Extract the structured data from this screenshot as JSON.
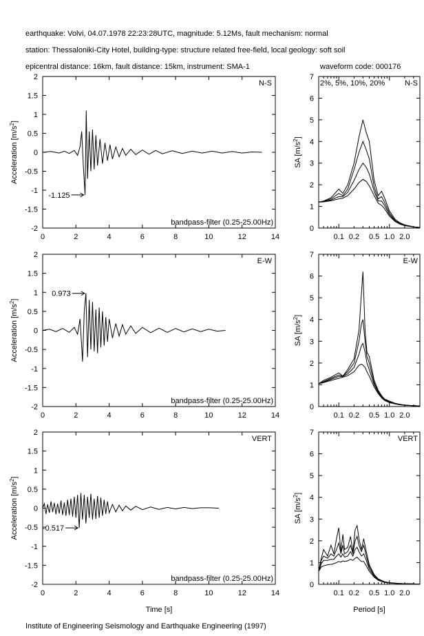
{
  "header": {
    "line1": "earthquake: Volvi, 04.07.1978 22:23:28UTC, magnitude: 5.12Ms, fault mechanism: normal",
    "line2": "station: Thessaloniki-City Hotel, building-type: structure related free-field, local geology: soft soil",
    "line3": "epicentral distance: 16km, fault distance: 15km, instrument: SMA-1",
    "waveform_code": "waveform code: 000176"
  },
  "footer": "Institute of Engineering Seismology and Earthquake Engineering (1997)",
  "chart_data": [
    {
      "type": "line",
      "component": "N-S",
      "ylabel": "Acceleration [m/s²]",
      "xlabel": "",
      "xlim": [
        0,
        14
      ],
      "ylim": [
        -2,
        2
      ],
      "xticks": [
        0,
        2,
        4,
        6,
        8,
        10,
        12,
        14
      ],
      "yticks": [
        -2,
        -1.5,
        -1,
        -0.5,
        0,
        0.5,
        1,
        1.5,
        2
      ],
      "filter_label": "bandpass-filter (0.25-25.00Hz)",
      "peak": {
        "label": "-1.125",
        "t": 2.55,
        "value": -1.125
      },
      "series": [
        {
          "x": [
            0,
            0.5,
            1,
            1.3,
            1.6,
            1.9,
            2.1,
            2.25,
            2.35,
            2.45,
            2.55,
            2.62,
            2.7,
            2.8,
            2.9,
            3.0,
            3.1,
            3.2,
            3.3,
            3.45,
            3.6,
            3.75,
            3.9,
            4.05,
            4.2,
            4.4,
            4.6,
            4.8,
            5.0,
            5.3,
            5.6,
            6.0,
            6.4,
            6.8,
            7.2,
            7.8,
            8.4,
            9.0,
            9.6,
            10.2,
            10.8,
            11.4,
            12.0,
            12.6,
            13.2
          ],
          "y": [
            0,
            0.02,
            -0.02,
            0.03,
            -0.03,
            0.05,
            -0.08,
            0.15,
            0.55,
            -0.4,
            -1.125,
            1.1,
            -0.7,
            0.55,
            -0.5,
            0.6,
            -0.45,
            0.45,
            -0.35,
            0.35,
            -0.3,
            0.25,
            -0.22,
            0.2,
            -0.18,
            0.14,
            -0.12,
            0.1,
            -0.08,
            0.08,
            -0.06,
            0.06,
            -0.05,
            0.05,
            -0.04,
            0.04,
            -0.03,
            0.03,
            -0.02,
            0.03,
            -0.02,
            0.02,
            -0.02,
            0.01,
            0
          ]
        }
      ]
    },
    {
      "type": "line",
      "component": "E-W",
      "ylabel": "Acceleration [m/s²]",
      "xlabel": "",
      "xlim": [
        0,
        14
      ],
      "ylim": [
        -2,
        2
      ],
      "xticks": [
        0,
        2,
        4,
        6,
        8,
        10,
        12,
        14
      ],
      "yticks": [
        -2,
        -1.5,
        -1,
        -0.5,
        0,
        0.5,
        1,
        1.5,
        2
      ],
      "filter_label": "bandpass-filter (0.25-25.00Hz)",
      "peak": {
        "label": "0.973",
        "t": 2.6,
        "value": 0.973
      },
      "series": [
        {
          "x": [
            0,
            0.4,
            0.8,
            1.2,
            1.6,
            1.9,
            2.1,
            2.25,
            2.4,
            2.5,
            2.6,
            2.7,
            2.8,
            2.9,
            3.0,
            3.1,
            3.2,
            3.3,
            3.4,
            3.5,
            3.6,
            3.7,
            3.8,
            3.9,
            4.0,
            4.2,
            4.4,
            4.6,
            4.8,
            5.0,
            5.3,
            5.6,
            6.0,
            6.5,
            7.0,
            7.5,
            8.0,
            8.5,
            9.0,
            9.5,
            10.0,
            10.5,
            11.0
          ],
          "y": [
            0,
            0.03,
            -0.03,
            0.05,
            -0.05,
            0.08,
            -0.1,
            0.3,
            -0.82,
            0.5,
            0.973,
            -0.7,
            0.8,
            -0.5,
            0.75,
            -0.55,
            0.55,
            -0.6,
            0.6,
            -0.45,
            0.5,
            -0.4,
            0.35,
            -0.3,
            0.3,
            -0.2,
            0.18,
            -0.15,
            0.15,
            -0.1,
            0.12,
            -0.08,
            0.08,
            -0.06,
            0.06,
            -0.05,
            0.05,
            -0.04,
            0.04,
            -0.03,
            0.03,
            -0.02,
            0
          ]
        }
      ]
    },
    {
      "type": "line",
      "component": "VERT",
      "ylabel": "Acceleration [m/s²]",
      "xlabel": "Time [s]",
      "xlim": [
        0,
        14
      ],
      "ylim": [
        -2,
        2
      ],
      "xticks": [
        0,
        2,
        4,
        6,
        8,
        10,
        12,
        14
      ],
      "yticks": [
        -2,
        -1.5,
        -1,
        -0.5,
        0,
        0.5,
        1,
        1.5,
        2
      ],
      "filter_label": "bandpass-filter (0.25-25.00Hz)",
      "peak": {
        "label": "-0.517",
        "t": 2.2,
        "value": -0.517
      },
      "series": [
        {
          "x": [
            0,
            0.1,
            0.2,
            0.3,
            0.4,
            0.5,
            0.6,
            0.7,
            0.8,
            0.9,
            1.0,
            1.1,
            1.2,
            1.3,
            1.4,
            1.5,
            1.6,
            1.7,
            1.8,
            1.9,
            2.0,
            2.1,
            2.2,
            2.3,
            2.4,
            2.5,
            2.6,
            2.7,
            2.8,
            2.9,
            3.0,
            3.1,
            3.2,
            3.3,
            3.4,
            3.5,
            3.6,
            3.7,
            3.8,
            3.9,
            4.0,
            4.2,
            4.4,
            4.6,
            4.8,
            5.0,
            5.3,
            5.6,
            6.0,
            6.5,
            7.0,
            7.5,
            8.0,
            8.5,
            9.0,
            9.5,
            10.0,
            10.6
          ],
          "y": [
            0,
            0.12,
            -0.15,
            0.1,
            -0.12,
            0.18,
            -0.1,
            0.14,
            -0.16,
            0.12,
            -0.14,
            0.2,
            -0.18,
            0.15,
            -0.2,
            0.22,
            -0.18,
            0.25,
            -0.22,
            0.3,
            -0.25,
            0.35,
            -0.517,
            0.4,
            -0.3,
            0.35,
            -0.4,
            0.3,
            -0.25,
            0.38,
            -0.3,
            0.25,
            -0.28,
            0.32,
            -0.25,
            0.28,
            -0.2,
            0.22,
            -0.15,
            0.18,
            -0.12,
            0.1,
            -0.1,
            0.08,
            -0.07,
            0.06,
            -0.05,
            0.05,
            -0.04,
            0.03,
            -0.03,
            0.02,
            -0.02,
            0.02,
            -0.01,
            0.01,
            0.01,
            0
          ]
        }
      ]
    },
    {
      "type": "line",
      "component": "N-S",
      "ylabel": "SA [m/s²]",
      "xlabel": "",
      "xscale": "log",
      "xlim": [
        0.04,
        4
      ],
      "ylim": [
        0,
        7
      ],
      "xtick_labels": [
        {
          "v": 0.1,
          "t": "0.1"
        },
        {
          "v": 0.2,
          "t": "0.2"
        },
        {
          "v": 0.5,
          "t": "0.5"
        },
        {
          "v": 1.0,
          "t": "1.0"
        },
        {
          "v": 2.0,
          "t": "2.0"
        }
      ],
      "yticks": [
        0,
        1,
        2,
        3,
        4,
        5,
        6,
        7
      ],
      "damping_label": "2%, 5%, 10%, 20%",
      "x": [
        0.04,
        0.05,
        0.07,
        0.1,
        0.12,
        0.15,
        0.2,
        0.25,
        0.3,
        0.35,
        0.4,
        0.5,
        0.6,
        0.7,
        0.8,
        1.0,
        1.3,
        1.6,
        2.0,
        3.0,
        4.0
      ],
      "series": [
        {
          "name": "2%",
          "values": [
            1.2,
            1.25,
            1.4,
            1.8,
            1.6,
            2.0,
            3.0,
            4.2,
            5.0,
            4.4,
            4.0,
            2.2,
            1.5,
            1.7,
            1.4,
            0.8,
            0.4,
            0.25,
            0.15,
            0.06,
            0.03
          ]
        },
        {
          "name": "5%",
          "values": [
            1.2,
            1.24,
            1.35,
            1.6,
            1.5,
            1.8,
            2.7,
            3.5,
            4.0,
            3.6,
            3.2,
            1.9,
            1.35,
            1.45,
            1.2,
            0.7,
            0.35,
            0.22,
            0.13,
            0.05,
            0.03
          ]
        },
        {
          "name": "10%",
          "values": [
            1.2,
            1.22,
            1.3,
            1.45,
            1.45,
            1.65,
            2.2,
            2.7,
            3.0,
            2.8,
            2.5,
            1.7,
            1.25,
            1.25,
            1.05,
            0.62,
            0.32,
            0.2,
            0.12,
            0.05,
            0.03
          ]
        },
        {
          "name": "20%",
          "values": [
            1.2,
            1.21,
            1.26,
            1.35,
            1.38,
            1.5,
            1.8,
            2.1,
            2.25,
            2.15,
            1.95,
            1.5,
            1.15,
            1.05,
            0.9,
            0.55,
            0.3,
            0.18,
            0.11,
            0.05,
            0.03
          ]
        }
      ]
    },
    {
      "type": "line",
      "component": "E-W",
      "ylabel": "SA [m/s²]",
      "xlabel": "",
      "xscale": "log",
      "xlim": [
        0.04,
        4
      ],
      "ylim": [
        0,
        7
      ],
      "xtick_labels": [
        {
          "v": 0.1,
          "t": "0.1"
        },
        {
          "v": 0.2,
          "t": "0.2"
        },
        {
          "v": 0.5,
          "t": "0.5"
        },
        {
          "v": 1.0,
          "t": "1.0"
        },
        {
          "v": 2.0,
          "t": "2.0"
        }
      ],
      "yticks": [
        0,
        1,
        2,
        3,
        4,
        5,
        6,
        7
      ],
      "x": [
        0.04,
        0.05,
        0.07,
        0.1,
        0.12,
        0.15,
        0.2,
        0.25,
        0.28,
        0.3,
        0.33,
        0.36,
        0.4,
        0.5,
        0.6,
        0.7,
        0.8,
        1.0,
        1.3,
        1.6,
        2.0,
        3.0,
        4.0
      ],
      "series": [
        {
          "name": "2%",
          "values": [
            1.05,
            1.2,
            1.35,
            1.55,
            1.4,
            1.7,
            2.2,
            3.5,
            5.2,
            6.2,
            3.5,
            2.5,
            2.3,
            1.2,
            0.75,
            0.5,
            0.35,
            0.25,
            0.15,
            0.1,
            0.07,
            0.04,
            0.03
          ]
        },
        {
          "name": "5%",
          "values": [
            1.05,
            1.15,
            1.3,
            1.45,
            1.4,
            1.6,
            2.0,
            3.0,
            3.8,
            4.0,
            3.0,
            2.3,
            2.0,
            1.1,
            0.7,
            0.47,
            0.33,
            0.22,
            0.14,
            0.09,
            0.06,
            0.04,
            0.03
          ]
        },
        {
          "name": "10%",
          "values": [
            1.05,
            1.12,
            1.25,
            1.38,
            1.38,
            1.5,
            1.8,
            2.4,
            2.8,
            2.9,
            2.5,
            2.0,
            1.7,
            1.0,
            0.65,
            0.43,
            0.3,
            0.2,
            0.13,
            0.09,
            0.06,
            0.04,
            0.03
          ]
        },
        {
          "name": "20%",
          "values": [
            1.05,
            1.1,
            1.2,
            1.3,
            1.35,
            1.42,
            1.6,
            1.9,
            1.95,
            1.9,
            1.8,
            1.6,
            1.4,
            0.9,
            0.6,
            0.4,
            0.28,
            0.18,
            0.12,
            0.08,
            0.06,
            0.04,
            0.03
          ]
        }
      ]
    },
    {
      "type": "line",
      "component": "VERT",
      "ylabel": "SA [m/s²]",
      "xlabel": "Period [s]",
      "xscale": "log",
      "xlim": [
        0.04,
        4
      ],
      "ylim": [
        0,
        7
      ],
      "xtick_labels": [
        {
          "v": 0.1,
          "t": "0.1"
        },
        {
          "v": 0.2,
          "t": "0.2"
        },
        {
          "v": 0.5,
          "t": "0.5"
        },
        {
          "v": 1.0,
          "t": "1.0"
        },
        {
          "v": 2.0,
          "t": "2.0"
        }
      ],
      "yticks": [
        0,
        1,
        2,
        3,
        4,
        5,
        6,
        7
      ],
      "x": [
        0.04,
        0.045,
        0.05,
        0.06,
        0.07,
        0.08,
        0.09,
        0.1,
        0.11,
        0.12,
        0.13,
        0.15,
        0.17,
        0.19,
        0.21,
        0.23,
        0.25,
        0.28,
        0.31,
        0.35,
        0.4,
        0.5,
        0.6,
        0.8,
        1.0,
        1.5,
        2.0,
        3.0,
        4.0
      ],
      "series": [
        {
          "name": "2%",
          "values": [
            0.6,
            1.2,
            1.6,
            1.3,
            1.8,
            1.4,
            2.1,
            2.6,
            1.5,
            2.3,
            1.6,
            1.7,
            2.2,
            1.5,
            2.5,
            2.7,
            2.1,
            1.6,
            2.1,
            1.5,
            0.9,
            0.45,
            0.25,
            0.12,
            0.08,
            0.04,
            0.03,
            0.02,
            0.01
          ]
        },
        {
          "name": "5%",
          "values": [
            0.6,
            1.1,
            1.3,
            1.2,
            1.4,
            1.3,
            1.6,
            1.9,
            1.4,
            1.8,
            1.4,
            1.5,
            1.8,
            1.4,
            2.0,
            2.2,
            1.8,
            1.5,
            1.8,
            1.3,
            0.8,
            0.42,
            0.23,
            0.11,
            0.07,
            0.04,
            0.03,
            0.02,
            0.01
          ]
        },
        {
          "name": "10%",
          "values": [
            0.6,
            0.95,
            1.1,
            1.1,
            1.15,
            1.15,
            1.3,
            1.4,
            1.25,
            1.4,
            1.25,
            1.3,
            1.5,
            1.3,
            1.6,
            1.7,
            1.5,
            1.3,
            1.4,
            1.1,
            0.7,
            0.38,
            0.21,
            0.1,
            0.07,
            0.04,
            0.03,
            0.02,
            0.01
          ]
        },
        {
          "name": "20%",
          "values": [
            0.6,
            0.8,
            0.85,
            0.9,
            0.92,
            0.95,
            1.0,
            1.05,
            1.02,
            1.08,
            1.05,
            1.08,
            1.15,
            1.1,
            1.2,
            1.25,
            1.15,
            1.05,
            1.05,
            0.85,
            0.6,
            0.33,
            0.19,
            0.09,
            0.06,
            0.03,
            0.02,
            0.02,
            0.01
          ]
        }
      ]
    }
  ]
}
